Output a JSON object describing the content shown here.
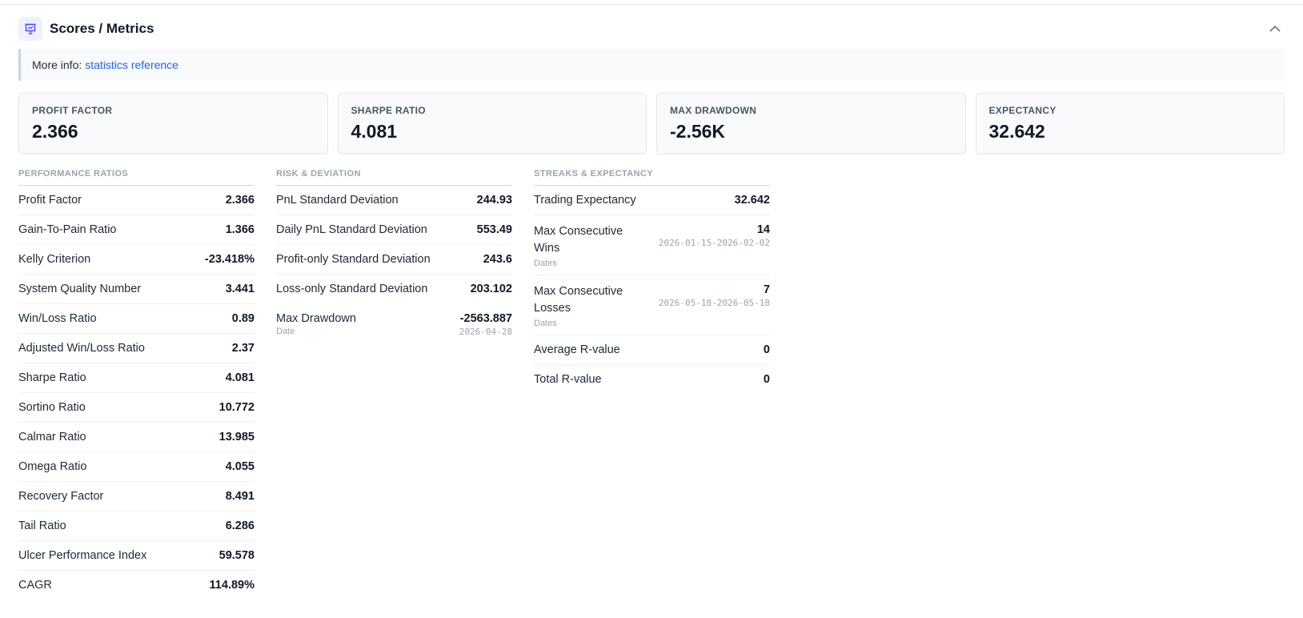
{
  "panel": {
    "title": "Scores / Metrics",
    "icon": "presentation-chart-icon",
    "collapse_icon": "chevron-up-icon"
  },
  "info": {
    "prefix": "More info:",
    "link_text": "statistics reference"
  },
  "cards": [
    {
      "label": "PROFIT FACTOR",
      "value": "2.366"
    },
    {
      "label": "SHARPE RATIO",
      "value": "4.081"
    },
    {
      "label": "MAX DRAWDOWN",
      "value": "-2.56K"
    },
    {
      "label": "EXPECTANCY",
      "value": "32.642"
    }
  ],
  "performance": {
    "heading": "PERFORMANCE RATIOS",
    "rows": [
      {
        "label": "Profit Factor",
        "value": "2.366"
      },
      {
        "label": "Gain-To-Pain Ratio",
        "value": "1.366"
      },
      {
        "label": "Kelly Criterion",
        "value": "-23.418%"
      },
      {
        "label": "System Quality Number",
        "value": "3.441"
      },
      {
        "label": "Win/Loss Ratio",
        "value": "0.89"
      },
      {
        "label": "Adjusted Win/Loss Ratio",
        "value": "2.37"
      },
      {
        "label": "Sharpe Ratio",
        "value": "4.081"
      },
      {
        "label": "Sortino Ratio",
        "value": "10.772"
      },
      {
        "label": "Calmar Ratio",
        "value": "13.985"
      },
      {
        "label": "Omega Ratio",
        "value": "4.055"
      },
      {
        "label": "Recovery Factor",
        "value": "8.491"
      },
      {
        "label": "Tail Ratio",
        "value": "6.286"
      },
      {
        "label": "Ulcer Performance Index",
        "value": "59.578"
      },
      {
        "label": "CAGR",
        "value": "114.89%"
      }
    ]
  },
  "risk": {
    "heading": "RISK & DEVIATION",
    "rows": [
      {
        "label": "PnL Standard Deviation",
        "value": "244.93"
      },
      {
        "label": "Daily PnL Standard Deviation",
        "value": "553.49"
      },
      {
        "label": "Profit-only Standard Deviation",
        "value": "243.6"
      },
      {
        "label": "Loss-only Standard Deviation",
        "value": "203.102"
      }
    ],
    "max_drawdown": {
      "label": "Max Drawdown",
      "sub_label": "Date",
      "value": "-2563.887",
      "date": "2026-04-28"
    }
  },
  "streaks": {
    "heading": "STREAKS & EXPECTANCY",
    "trading_expectancy": {
      "label": "Trading Expectancy",
      "value": "32.642"
    },
    "max_wins": {
      "label": "Max Consecutive Wins",
      "sub_label": "Dates",
      "value": "14",
      "dates": "2026-01-15-2026-02-02"
    },
    "max_losses": {
      "label": "Max Consecutive Losses",
      "sub_label": "Dates",
      "value": "7",
      "dates": "2026-05-18-2026-05-18"
    },
    "average_r": {
      "label": "Average R-value",
      "value": "0"
    },
    "total_r": {
      "label": "Total R-value",
      "value": "0"
    }
  }
}
